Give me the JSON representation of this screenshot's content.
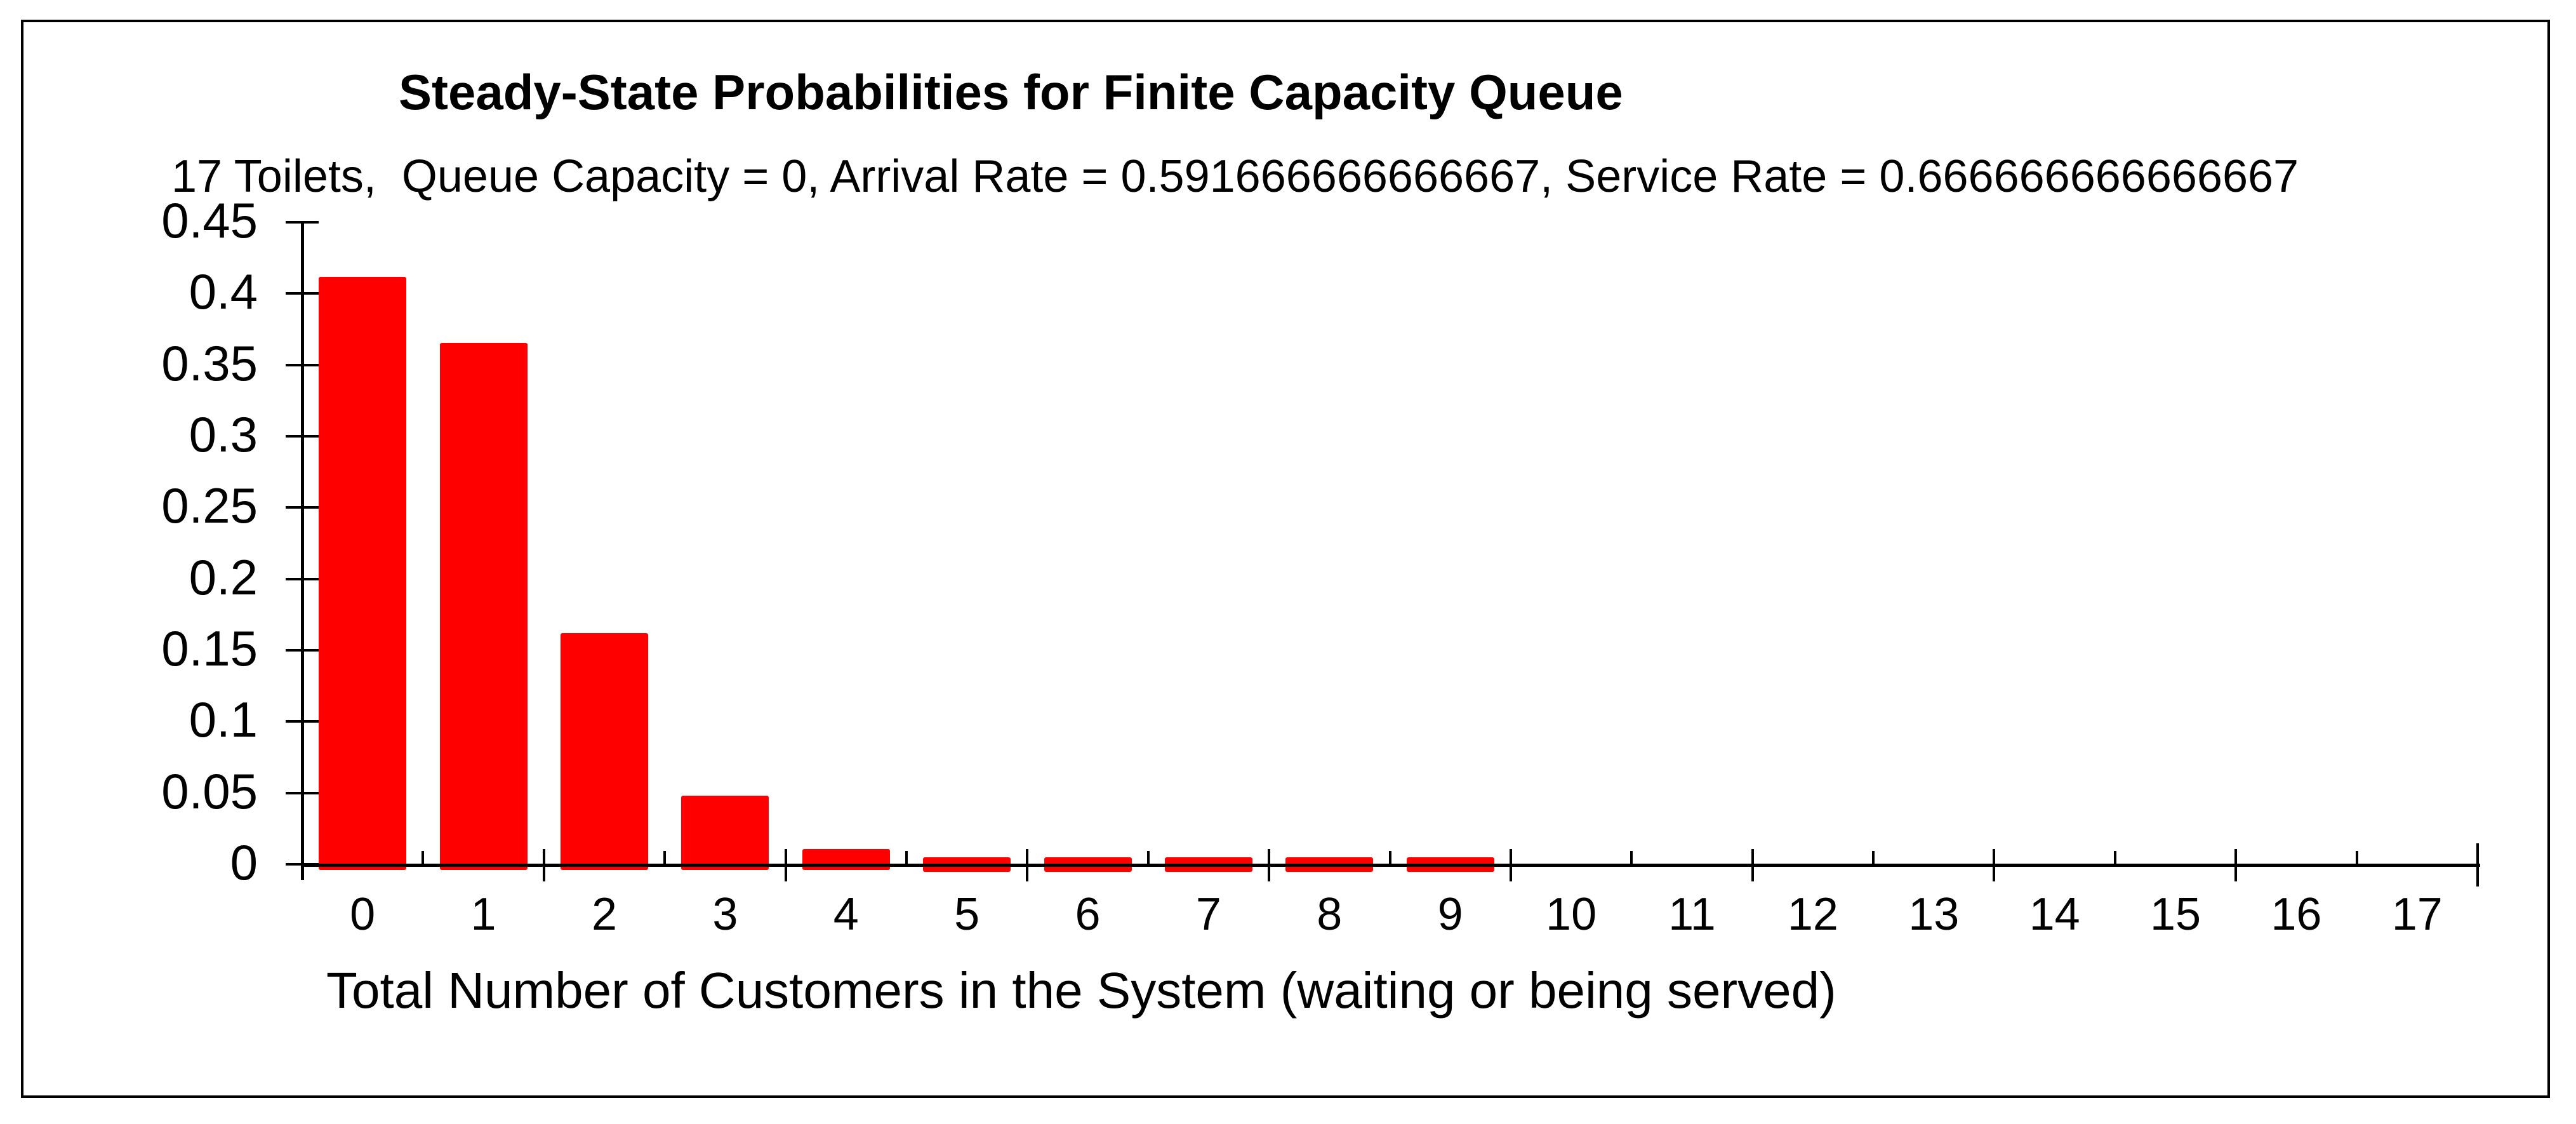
{
  "chart_data": {
    "type": "bar",
    "title": "Steady-State Probabilities for Finite Capacity Queue",
    "subtitle": "17 Toilets,  Queue Capacity = 0, Arrival Rate = 0.591666666666667, Service Rate = 0.666666666666667",
    "xlabel": "Total Number of Customers in the System (waiting or being served)",
    "ylabel": "",
    "categories": [
      "0",
      "1",
      "2",
      "3",
      "4",
      "5",
      "6",
      "7",
      "8",
      "9",
      "10",
      "11",
      "12",
      "13",
      "14",
      "15",
      "16",
      "17"
    ],
    "values": [
      0.411683,
      0.365369,
      0.162133,
      0.047965,
      0.010642,
      0.001889,
      0.000279,
      3.54e-05,
      3.9e-06,
      4e-07,
      0,
      0,
      0,
      0,
      0,
      0,
      0,
      0
    ],
    "y_ticks": [
      0,
      0.05,
      0.1,
      0.15,
      0.2,
      0.25,
      0.3,
      0.35,
      0.4,
      0.45
    ],
    "y_tick_labels": [
      "0",
      "0.05",
      "0.1",
      "0.15",
      "0.2",
      "0.25",
      "0.3",
      "0.35",
      "0.4",
      "0.45"
    ],
    "ylim": [
      0,
      0.45
    ],
    "grid": false,
    "legend": false,
    "bar_color": "#ff0000",
    "axis_color": "#000000",
    "background_color": "#ffffff"
  }
}
